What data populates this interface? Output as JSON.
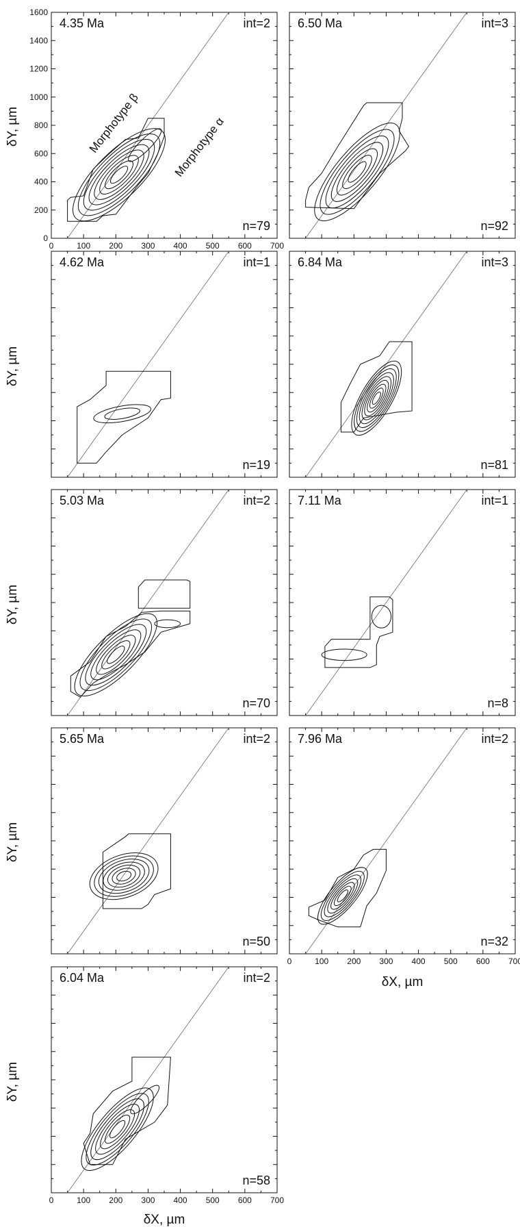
{
  "axis_titles": {
    "x": "δX, µm",
    "y": "δY, µm"
  },
  "chart_data": [
    {
      "type": "contour",
      "age": "4.35 Ma",
      "int_label": "int=2",
      "n_label": "n=79",
      "xlim": [
        0,
        700
      ],
      "ylim": [
        0,
        1600
      ],
      "xticks": [
        "0",
        "100",
        "200",
        "300",
        "400",
        "500",
        "600",
        "700"
      ],
      "yticks": [
        "0",
        "200",
        "400",
        "600",
        "800",
        "1000",
        "1200",
        "1400",
        "1600"
      ],
      "xlabel": "",
      "ylabel": "δY, µm",
      "annotations": [
        "Morphotype β",
        "Morphotype α"
      ],
      "line": [
        [
          50,
          0
        ],
        [
          550,
          1600
        ]
      ],
      "outer": [
        [
          50,
          270
        ],
        [
          50,
          120
        ],
        [
          140,
          120
        ],
        [
          160,
          160
        ],
        [
          200,
          170
        ],
        [
          270,
          380
        ],
        [
          300,
          460
        ],
        [
          330,
          600
        ],
        [
          350,
          720
        ],
        [
          350,
          850
        ],
        [
          300,
          850
        ],
        [
          270,
          710
        ],
        [
          230,
          700
        ],
        [
          180,
          600
        ],
        [
          130,
          490
        ],
        [
          100,
          300
        ],
        [
          60,
          290
        ]
      ],
      "peaks": [
        {
          "cx": 210,
          "cy": 450,
          "rx": 190,
          "ry": 160,
          "rot": 45,
          "levels": 8
        },
        {
          "cx": 290,
          "cy": 660,
          "rx": 70,
          "ry": 40,
          "rot": 45,
          "levels": 1
        }
      ]
    },
    {
      "type": "contour",
      "age": "6.50 Ma",
      "int_label": "int=3",
      "n_label": "n=92",
      "xlim": [
        0,
        700
      ],
      "ylim": [
        0,
        1600
      ],
      "xticks": [],
      "yticks": [],
      "xlabel": "",
      "ylabel": "",
      "line": [
        [
          50,
          0
        ],
        [
          550,
          1600
        ]
      ],
      "outer": [
        [
          50,
          270
        ],
        [
          50,
          220
        ],
        [
          200,
          210
        ],
        [
          280,
          460
        ],
        [
          320,
          540
        ],
        [
          360,
          620
        ],
        [
          370,
          650
        ],
        [
          340,
          760
        ],
        [
          350,
          850
        ],
        [
          350,
          960
        ],
        [
          320,
          960
        ],
        [
          240,
          960
        ],
        [
          230,
          940
        ],
        [
          150,
          650
        ],
        [
          100,
          460
        ],
        [
          60,
          360
        ]
      ],
      "peaks": [
        {
          "cx": 210,
          "cy": 470,
          "rx": 190,
          "ry": 150,
          "rot": 50,
          "levels": 7
        }
      ]
    },
    {
      "type": "contour",
      "age": "4.62 Ma",
      "int_label": "int=1",
      "n_label": "n=19",
      "xlim": [
        0,
        700
      ],
      "ylim": [
        0,
        1600
      ],
      "xticks": [],
      "yticks": [],
      "xlabel": "",
      "ylabel": "",
      "line": [
        [
          50,
          0
        ],
        [
          550,
          1600
        ]
      ],
      "outer": [
        [
          80,
          100
        ],
        [
          140,
          100
        ],
        [
          170,
          180
        ],
        [
          220,
          300
        ],
        [
          300,
          420
        ],
        [
          340,
          550
        ],
        [
          370,
          560
        ],
        [
          370,
          750
        ],
        [
          280,
          750
        ],
        [
          170,
          750
        ],
        [
          170,
          650
        ],
        [
          120,
          550
        ],
        [
          80,
          500
        ]
      ],
      "peaks": [
        {
          "cx": 220,
          "cy": 450,
          "rx": 90,
          "ry": 55,
          "rot": 10,
          "levels": 2
        }
      ]
    },
    {
      "type": "contour",
      "age": "6.84 Ma",
      "int_label": "int=3",
      "n_label": "n=81",
      "xlim": [
        0,
        700
      ],
      "ylim": [
        0,
        1600
      ],
      "xticks": [],
      "yticks": [],
      "xlabel": "",
      "ylabel": "",
      "line": [
        [
          50,
          0
        ],
        [
          550,
          1600
        ]
      ],
      "outer": [
        [
          160,
          320
        ],
        [
          200,
          320
        ],
        [
          230,
          420
        ],
        [
          330,
          460
        ],
        [
          380,
          470
        ],
        [
          380,
          960
        ],
        [
          310,
          960
        ],
        [
          280,
          860
        ],
        [
          220,
          800
        ],
        [
          190,
          670
        ],
        [
          160,
          530
        ]
      ],
      "peaks": [
        {
          "cx": 270,
          "cy": 560,
          "rx": 130,
          "ry": 110,
          "rot": 60,
          "levels": 9
        }
      ]
    },
    {
      "type": "contour",
      "age": "5.03 Ma",
      "int_label": "int=2",
      "n_label": "n=70",
      "xlim": [
        0,
        700
      ],
      "ylim": [
        0,
        1600
      ],
      "xticks": [],
      "yticks": [],
      "xlabel": "",
      "ylabel": "",
      "line": [
        [
          50,
          0
        ],
        [
          550,
          1600
        ]
      ],
      "outer": [
        [
          60,
          170
        ],
        [
          60,
          280
        ],
        [
          120,
          380
        ],
        [
          170,
          560
        ],
        [
          230,
          630
        ],
        [
          280,
          730
        ],
        [
          340,
          740
        ],
        [
          430,
          740
        ],
        [
          430,
          650
        ],
        [
          340,
          590
        ],
        [
          290,
          450
        ],
        [
          230,
          360
        ],
        [
          180,
          300
        ],
        [
          130,
          230
        ],
        [
          90,
          130
        ]
      ],
      "extra": [
        [
          270,
          760
        ],
        [
          430,
          760
        ],
        [
          430,
          950
        ],
        [
          420,
          960
        ],
        [
          290,
          960
        ],
        [
          270,
          910
        ]
      ],
      "peaks": [
        {
          "cx": 200,
          "cy": 430,
          "rx": 170,
          "ry": 140,
          "rot": 45,
          "levels": 7
        },
        {
          "cx": 360,
          "cy": 650,
          "rx": 40,
          "ry": 28,
          "rot": 0,
          "levels": 1
        }
      ]
    },
    {
      "type": "contour",
      "age": "7.11 Ma",
      "int_label": "int=1",
      "n_label": "n=8",
      "xlim": [
        0,
        700
      ],
      "ylim": [
        0,
        1600
      ],
      "xticks": [],
      "yticks": [],
      "xlabel": "",
      "ylabel": "",
      "line": [
        [
          50,
          0
        ],
        [
          550,
          1600
        ]
      ],
      "outer": [
        [
          110,
          340
        ],
        [
          110,
          490
        ],
        [
          130,
          540
        ],
        [
          250,
          540
        ],
        [
          250,
          840
        ],
        [
          310,
          840
        ],
        [
          320,
          820
        ],
        [
          320,
          590
        ],
        [
          280,
          560
        ],
        [
          270,
          500
        ],
        [
          270,
          360
        ],
        [
          250,
          340
        ]
      ],
      "peaks": [
        {
          "cx": 170,
          "cy": 430,
          "rx": 70,
          "ry": 40,
          "rot": 0,
          "levels": 1
        },
        {
          "cx": 285,
          "cy": 700,
          "rx": 30,
          "ry": 80,
          "rot": 0,
          "levels": 1
        }
      ]
    },
    {
      "type": "contour",
      "age": "5.65 Ma",
      "int_label": "int=2",
      "n_label": "n=50",
      "xlim": [
        0,
        700
      ],
      "ylim": [
        0,
        1600
      ],
      "xticks": [],
      "yticks": [],
      "xlabel": "",
      "ylabel": "",
      "line": [
        [
          50,
          0
        ],
        [
          550,
          1600
        ]
      ],
      "outer": [
        [
          160,
          320
        ],
        [
          280,
          320
        ],
        [
          300,
          350
        ],
        [
          320,
          420
        ],
        [
          370,
          460
        ],
        [
          370,
          850
        ],
        [
          240,
          850
        ],
        [
          230,
          830
        ],
        [
          160,
          720
        ]
      ],
      "peaks": [
        {
          "cx": 225,
          "cy": 550,
          "rx": 110,
          "ry": 150,
          "rot": 20,
          "levels": 7
        }
      ]
    },
    {
      "type": "contour",
      "age": "7.96 Ma",
      "int_label": "int=2",
      "n_label": "n=32",
      "xlim": [
        0,
        700
      ],
      "ylim": [
        0,
        1600
      ],
      "xticks": [
        "0",
        "100",
        "200",
        "300",
        "400",
        "500",
        "600",
        "700"
      ],
      "yticks": [],
      "xlabel": "δX, µm",
      "ylabel": "",
      "line": [
        [
          50,
          0
        ],
        [
          550,
          1600
        ]
      ],
      "outer": [
        [
          60,
          270
        ],
        [
          60,
          330
        ],
        [
          110,
          380
        ],
        [
          150,
          540
        ],
        [
          200,
          600
        ],
        [
          230,
          700
        ],
        [
          260,
          740
        ],
        [
          300,
          740
        ],
        [
          300,
          590
        ],
        [
          270,
          430
        ],
        [
          240,
          340
        ],
        [
          220,
          190
        ],
        [
          150,
          190
        ],
        [
          90,
          240
        ]
      ],
      "peaks": [
        {
          "cx": 165,
          "cy": 410,
          "rx": 110,
          "ry": 90,
          "rot": 50,
          "levels": 7
        }
      ]
    },
    {
      "type": "contour",
      "age": "6.04 Ma",
      "int_label": "int=2",
      "n_label": "n=58",
      "xlim": [
        0,
        700
      ],
      "ylim": [
        0,
        1600
      ],
      "xticks": [
        "0",
        "100",
        "200",
        "300",
        "400",
        "500",
        "600",
        "700"
      ],
      "yticks": [],
      "xlabel": "δX, µm",
      "ylabel": "",
      "line": [
        [
          50,
          0
        ],
        [
          550,
          1600
        ]
      ],
      "outer": [
        [
          120,
          200
        ],
        [
          190,
          200
        ],
        [
          230,
          380
        ],
        [
          320,
          500
        ],
        [
          360,
          620
        ],
        [
          370,
          960
        ],
        [
          250,
          960
        ],
        [
          250,
          790
        ],
        [
          190,
          720
        ],
        [
          130,
          560
        ],
        [
          120,
          420
        ],
        [
          100,
          350
        ]
      ],
      "peaks": [
        {
          "cx": 205,
          "cy": 450,
          "rx": 160,
          "ry": 130,
          "rot": 50,
          "levels": 7
        },
        {
          "cx": 290,
          "cy": 660,
          "rx": 60,
          "ry": 40,
          "rot": 45,
          "levels": 1
        }
      ]
    }
  ]
}
